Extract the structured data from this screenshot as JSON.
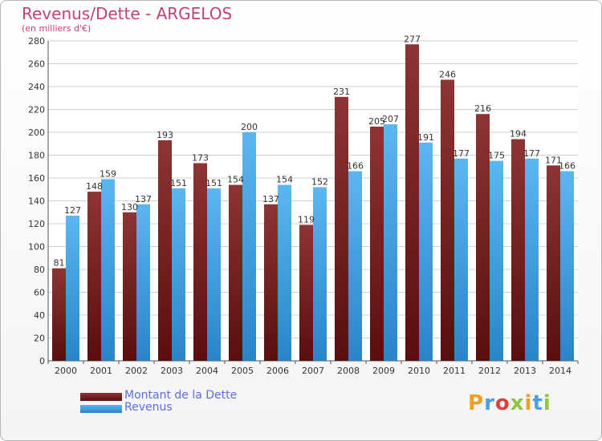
{
  "chart_title": "Revenus/Dette - ARGELOS",
  "chart_subtitle": "(en milliers d'€)",
  "colors": {
    "title": "#c0427a",
    "debt": "#7a2020",
    "revenue": "#4aa8e8",
    "legend_text": "#5b6ee0"
  },
  "logo_text": "Proxiti",
  "chart_data": {
    "type": "bar",
    "categories": [
      "2000",
      "2001",
      "2002",
      "2003",
      "2004",
      "2005",
      "2006",
      "2007",
      "2008",
      "2009",
      "2010",
      "2011",
      "2012",
      "2013",
      "2014"
    ],
    "series": [
      {
        "name": "Montant de la Dette",
        "values": [
          81,
          148,
          130,
          193,
          173,
          154,
          137,
          119,
          231,
          205,
          277,
          246,
          216,
          194,
          171
        ]
      },
      {
        "name": "Revenus",
        "values": [
          127,
          159,
          137,
          151,
          151,
          200,
          154,
          152,
          166,
          207,
          191,
          177,
          175,
          177,
          166
        ]
      }
    ],
    "ylim": [
      0,
      280
    ],
    "yticks": [
      0,
      20,
      40,
      60,
      80,
      100,
      120,
      140,
      160,
      180,
      200,
      220,
      240,
      260,
      280
    ],
    "grid": true,
    "legend": "bottom-left"
  }
}
